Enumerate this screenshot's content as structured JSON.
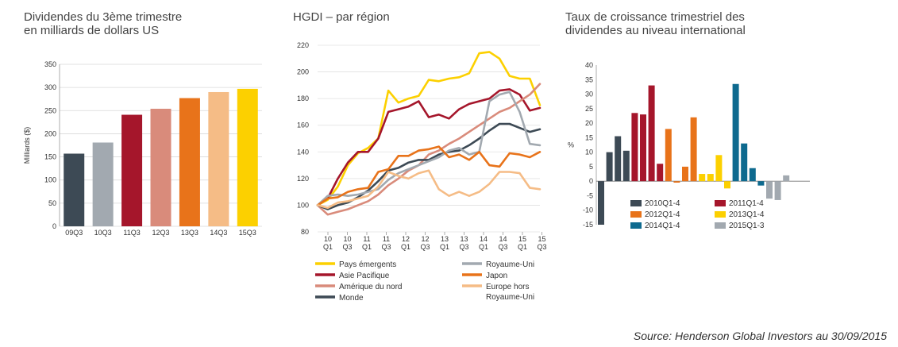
{
  "chart_data": [
    {
      "type": "bar",
      "title": "Dividendes du 3ème trimestre\nen milliards de dollars US",
      "ylabel": "Milliards ($)",
      "ylim": [
        0,
        350
      ],
      "yticks": [
        0,
        50,
        100,
        150,
        200,
        250,
        300,
        350
      ],
      "categories": [
        "09Q3",
        "10Q3",
        "11Q3",
        "12Q3",
        "13Q3",
        "14Q3",
        "15Q3"
      ],
      "values": [
        157,
        181,
        241,
        254,
        277,
        290,
        297
      ],
      "colors": [
        "#3d4a55",
        "#a2a9b0",
        "#a5162b",
        "#d98b7b",
        "#e8731a",
        "#f5bc86",
        "#fcd000"
      ],
      "grid": true
    },
    {
      "type": "line",
      "title": "HGDI – par région",
      "ylim": [
        80,
        220
      ],
      "yticks": [
        80,
        100,
        120,
        140,
        160,
        180,
        200,
        220
      ],
      "x_labels": [
        [
          "10",
          "Q1"
        ],
        [
          "10",
          "Q3"
        ],
        [
          "11",
          "Q1"
        ],
        [
          "11",
          "Q3"
        ],
        [
          "12",
          "Q1"
        ],
        [
          "12",
          "Q3"
        ],
        [
          "13",
          "Q1"
        ],
        [
          "13",
          "Q3"
        ],
        [
          "14",
          "Q1"
        ],
        [
          "14",
          "Q3"
        ],
        [
          "15",
          "Q1"
        ],
        [
          "15",
          "Q3"
        ]
      ],
      "grid": true,
      "series": [
        {
          "name": "Pays émergents",
          "color": "#fcd000",
          "values": [
            100,
            104,
            114,
            130,
            139,
            143,
            150,
            186,
            177,
            180,
            182,
            194,
            193,
            195,
            196,
            199,
            214,
            215,
            210,
            197,
            195,
            195,
            175
          ]
        },
        {
          "name": "Asie Pacifique",
          "color": "#a5162b",
          "values": [
            100,
            105,
            120,
            132,
            140,
            140,
            150,
            170,
            172,
            174,
            178,
            166,
            168,
            165,
            172,
            176,
            178,
            180,
            186,
            187,
            183,
            171,
            173
          ]
        },
        {
          "name": "Amérique du nord",
          "color": "#d98b7b",
          "values": [
            100,
            93,
            95,
            97,
            100,
            103,
            108,
            115,
            120,
            126,
            130,
            138,
            141,
            146,
            150,
            155,
            160,
            165,
            170,
            173,
            178,
            183,
            191
          ]
        },
        {
          "name": "Monde",
          "color": "#3d4a55",
          "values": [
            100,
            97,
            100,
            102,
            106,
            111,
            118,
            126,
            128,
            132,
            134,
            134,
            138,
            140,
            141,
            145,
            150,
            156,
            161,
            161,
            158,
            155,
            157
          ]
        },
        {
          "name": "Royaume-Uni",
          "color": "#a2a9b0",
          "values": [
            100,
            107,
            108,
            107,
            108,
            110,
            112,
            119,
            124,
            127,
            130,
            133,
            136,
            141,
            143,
            138,
            140,
            178,
            183,
            185,
            170,
            146,
            145
          ]
        },
        {
          "name": "Japon",
          "color": "#e8731a",
          "values": [
            100,
            105,
            106,
            110,
            112,
            113,
            125,
            127,
            137,
            137,
            141,
            142,
            144,
            136,
            138,
            134,
            140,
            130,
            129,
            139,
            138,
            136,
            140
          ]
        },
        {
          "name": "Europe hors\nRoyaume-Uni",
          "color": "#f5bc86",
          "values": [
            100,
            98,
            102,
            103,
            105,
            107,
            114,
            125,
            122,
            120,
            124,
            126,
            112,
            107,
            110,
            107,
            110,
            116,
            125,
            125,
            124,
            113,
            112
          ]
        }
      ]
    },
    {
      "type": "bar",
      "title": "Taux de croissance trimestriel des\ndividendes au niveau international",
      "ylabel": "%",
      "ylim": [
        -15,
        40
      ],
      "yticks": [
        -15,
        -10,
        -5,
        0,
        5,
        10,
        15,
        20,
        25,
        30,
        35,
        40
      ],
      "series": [
        {
          "name": "2010Q1-4",
          "color": "#3d4a55",
          "values": [
            -15,
            10,
            15.5,
            10.5
          ]
        },
        {
          "name": "2011Q1-4",
          "color": "#a5162b",
          "values": [
            23.5,
            23,
            33,
            6
          ]
        },
        {
          "name": "2012Q1-4",
          "color": "#e8731a",
          "values": [
            18,
            -0.5,
            5,
            22
          ]
        },
        {
          "name": "2013Q1-4",
          "color": "#fcd000",
          "values": [
            2.5,
            2.5,
            9,
            -2.5
          ]
        },
        {
          "name": "2014Q1-4",
          "color": "#0e6a8f",
          "values": [
            33.5,
            13,
            4.5,
            -1.5
          ]
        },
        {
          "name": "2015Q1-3",
          "color": "#a2a9b0",
          "values": [
            -6,
            -6.5,
            2
          ]
        }
      ]
    }
  ],
  "source": "Source: Henderson Global Investors au 30/09/2015"
}
